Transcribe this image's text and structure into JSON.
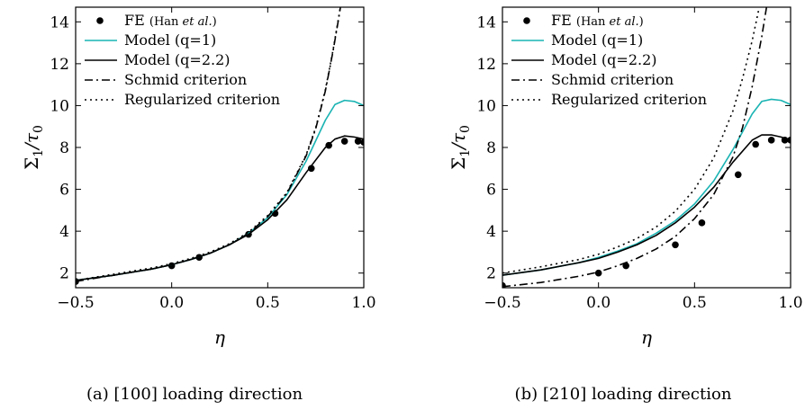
{
  "figure": {
    "captions": [
      "(a) [100] loading direction",
      "(b) [210] loading direction"
    ]
  },
  "styles": {
    "fe": {
      "color": "#000000"
    },
    "model_q1": {
      "color": "#1ab3b3"
    },
    "model_q22": {
      "color": "#000000"
    },
    "schmid": {
      "color": "#000000",
      "dash": "dash-dot"
    },
    "regularized": {
      "color": "#000000",
      "dash": "dotted"
    }
  },
  "chart_data": [
    {
      "type": "line",
      "panel": "a",
      "caption": "(a) [100] loading direction",
      "xlabel": "η",
      "ylabel_main": "Σ",
      "ylabel_sub1": "1",
      "ylabel_sep": "/τ",
      "ylabel_sub2": "0",
      "xlim": [
        -0.5,
        1.0
      ],
      "ylim": [
        1.3,
        14.7
      ],
      "xticks": [
        -0.5,
        0.0,
        0.5,
        1.0
      ],
      "xtick_labels": [
        "−0.5",
        "0.0",
        "0.5",
        "1.0"
      ],
      "yticks": [
        2,
        4,
        6,
        8,
        10,
        12,
        14
      ],
      "ytick_labels": [
        "2",
        "4",
        "6",
        "8",
        "10",
        "12",
        "14"
      ],
      "legend": {
        "position": "top-left",
        "entries": [
          {
            "key": "fe",
            "prefix": "FE ",
            "note": "(Han ",
            "note_italic": "et al.",
            "note_end": ")"
          },
          {
            "key": "model_q1",
            "label": "Model (q=1)"
          },
          {
            "key": "model_q22",
            "label": "Model (q=2.2)"
          },
          {
            "key": "schmid",
            "label": "Schmid criterion"
          },
          {
            "key": "regularized",
            "label": "Regularized criterion"
          }
        ]
      },
      "series": [
        {
          "key": "fe",
          "kind": "scatter",
          "x": [
            -0.5,
            0.0,
            0.143,
            0.4,
            0.538,
            0.727,
            0.818,
            0.9,
            0.97,
            1.0
          ],
          "y": [
            1.6,
            2.35,
            2.75,
            3.85,
            4.85,
            7.0,
            8.1,
            8.3,
            8.3,
            8.25
          ]
        },
        {
          "key": "model_q1",
          "kind": "line",
          "x": [
            -0.5,
            -0.3,
            -0.1,
            0.0,
            0.1,
            0.2,
            0.3,
            0.4,
            0.5,
            0.6,
            0.7,
            0.8,
            0.85,
            0.9,
            0.95,
            1.0
          ],
          "y": [
            1.65,
            1.9,
            2.2,
            2.4,
            2.65,
            2.95,
            3.35,
            3.9,
            4.65,
            5.75,
            7.35,
            9.3,
            10.05,
            10.25,
            10.2,
            10.0
          ]
        },
        {
          "key": "model_q22",
          "kind": "line",
          "x": [
            -0.5,
            -0.3,
            -0.1,
            0.0,
            0.1,
            0.2,
            0.3,
            0.4,
            0.5,
            0.6,
            0.7,
            0.8,
            0.85,
            0.9,
            0.95,
            1.0
          ],
          "y": [
            1.65,
            1.9,
            2.2,
            2.4,
            2.65,
            2.95,
            3.35,
            3.85,
            4.55,
            5.5,
            6.8,
            8.0,
            8.4,
            8.55,
            8.5,
            8.4
          ]
        },
        {
          "key": "schmid",
          "kind": "line",
          "x": [
            -0.5,
            -0.3,
            -0.1,
            0.0,
            0.1,
            0.2,
            0.3,
            0.4,
            0.5,
            0.6,
            0.7,
            0.75,
            0.8,
            0.84,
            0.87,
            0.9
          ],
          "y": [
            1.6,
            1.9,
            2.2,
            2.4,
            2.65,
            2.95,
            3.35,
            3.9,
            4.7,
            5.8,
            7.6,
            8.9,
            10.7,
            12.6,
            14.2,
            16.0
          ]
        },
        {
          "key": "regularized",
          "kind": "line",
          "x": [
            -0.5,
            -0.3,
            -0.1,
            0.0,
            0.1,
            0.2,
            0.3,
            0.4,
            0.5,
            0.6,
            0.7,
            0.75,
            0.8,
            0.84,
            0.87,
            0.9
          ],
          "y": [
            1.65,
            1.95,
            2.25,
            2.45,
            2.7,
            3.0,
            3.4,
            3.95,
            4.75,
            5.85,
            7.65,
            8.95,
            10.75,
            12.65,
            14.25,
            16.0
          ]
        }
      ]
    },
    {
      "type": "line",
      "panel": "b",
      "caption": "(b) [210] loading direction",
      "xlabel": "η",
      "ylabel_main": "Σ",
      "ylabel_sub1": "1",
      "ylabel_sep": "/τ",
      "ylabel_sub2": "0",
      "xlim": [
        -0.5,
        1.0
      ],
      "ylim": [
        1.3,
        14.7
      ],
      "xticks": [
        -0.5,
        0.0,
        0.5,
        1.0
      ],
      "xtick_labels": [
        "−0.5",
        "0.0",
        "0.5",
        "1.0"
      ],
      "yticks": [
        2,
        4,
        6,
        8,
        10,
        12,
        14
      ],
      "ytick_labels": [
        "2",
        "4",
        "6",
        "8",
        "10",
        "12",
        "14"
      ],
      "legend": {
        "position": "top-left",
        "entries": [
          {
            "key": "fe",
            "prefix": "FE ",
            "note": "(Han ",
            "note_italic": "et al.",
            "note_end": ")"
          },
          {
            "key": "model_q1",
            "label": "Model (q=1)"
          },
          {
            "key": "model_q22",
            "label": "Model (q=2.2)"
          },
          {
            "key": "schmid",
            "label": "Schmid criterion"
          },
          {
            "key": "regularized",
            "label": "Regularized criterion"
          }
        ]
      },
      "series": [
        {
          "key": "fe",
          "kind": "scatter",
          "x": [
            -0.5,
            0.0,
            0.143,
            0.4,
            0.538,
            0.727,
            0.818,
            0.9,
            0.97,
            1.0
          ],
          "y": [
            1.4,
            2.0,
            2.35,
            3.35,
            4.4,
            6.7,
            8.15,
            8.35,
            8.35,
            8.35
          ]
        },
        {
          "key": "model_q1",
          "kind": "line",
          "x": [
            -0.5,
            -0.3,
            -0.1,
            0.0,
            0.1,
            0.2,
            0.3,
            0.4,
            0.5,
            0.6,
            0.7,
            0.8,
            0.85,
            0.9,
            0.95,
            1.0
          ],
          "y": [
            1.9,
            2.15,
            2.5,
            2.75,
            3.05,
            3.4,
            3.9,
            4.5,
            5.3,
            6.4,
            7.9,
            9.6,
            10.2,
            10.3,
            10.25,
            10.05
          ]
        },
        {
          "key": "model_q22",
          "kind": "line",
          "x": [
            -0.5,
            -0.3,
            -0.1,
            0.0,
            0.1,
            0.2,
            0.3,
            0.4,
            0.5,
            0.6,
            0.7,
            0.8,
            0.85,
            0.9,
            0.95,
            1.0
          ],
          "y": [
            1.9,
            2.15,
            2.5,
            2.7,
            3.0,
            3.35,
            3.8,
            4.4,
            5.15,
            6.1,
            7.3,
            8.35,
            8.6,
            8.6,
            8.5,
            8.35
          ]
        },
        {
          "key": "schmid",
          "kind": "line",
          "x": [
            -0.5,
            -0.3,
            -0.1,
            0.0,
            0.1,
            0.2,
            0.3,
            0.4,
            0.5,
            0.6,
            0.7,
            0.75,
            0.8,
            0.85,
            0.88,
            0.91
          ],
          "y": [
            1.35,
            1.55,
            1.85,
            2.05,
            2.35,
            2.7,
            3.15,
            3.75,
            4.6,
            5.75,
            7.55,
            8.95,
            10.9,
            13.3,
            15.0,
            16.5
          ]
        },
        {
          "key": "regularized",
          "kind": "line",
          "x": [
            -0.5,
            -0.3,
            -0.1,
            0.0,
            0.1,
            0.2,
            0.3,
            0.4,
            0.5,
            0.6,
            0.7,
            0.75,
            0.8,
            0.83,
            0.86,
            0.88
          ],
          "y": [
            2.0,
            2.3,
            2.65,
            2.9,
            3.25,
            3.65,
            4.2,
            4.95,
            6.0,
            7.5,
            9.75,
            11.3,
            13.1,
            14.4,
            15.7,
            16.6
          ]
        }
      ]
    }
  ]
}
